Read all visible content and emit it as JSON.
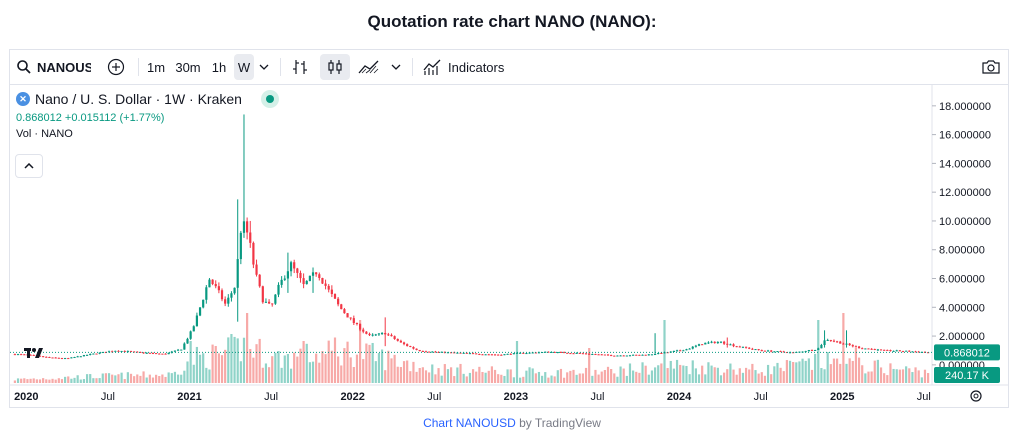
{
  "page_title": "Quotation rate chart NANO (NANO):",
  "toolbar": {
    "symbol": "NANOUSD",
    "intervals": [
      "1m",
      "30m",
      "1h",
      "W"
    ],
    "active_interval": "W",
    "indicators_label": "Indicators"
  },
  "legend": {
    "title": "Nano / U. S. Dollar · 1W · Kraken",
    "price_line": "0.868012 +0.015112 (+1.77%)",
    "volume_label": "Vol · NANO"
  },
  "footer": {
    "link_text": "Chart NANOUSD",
    "by_text": " by TradingView"
  },
  "colors": {
    "up": "#089981",
    "down": "#f23645",
    "vol_up": "#8fd3c8",
    "vol_down": "#f7a9a7",
    "badge": "#089981"
  },
  "chart_data": {
    "type": "candlestick",
    "y_tick_labels": [
      "18.000000",
      "16.000000",
      "14.000000",
      "12.000000",
      "10.000000",
      "8.000000",
      "6.000000",
      "4.000000",
      "2.000000",
      "0.000000"
    ],
    "y_ticks": [
      18,
      16,
      14,
      12,
      10,
      8,
      6,
      4,
      2,
      0
    ],
    "ylim": [
      -1.4,
      19.1
    ],
    "x_tick_labels": [
      "2020",
      "Jul",
      "2021",
      "Jul",
      "2022",
      "Jul",
      "2023",
      "Jul",
      "2024",
      "Jul",
      "2025",
      "Jul"
    ],
    "x_ticks": [
      2020.0,
      2020.5,
      2021.0,
      2021.5,
      2022.0,
      2022.5,
      2023.0,
      2023.5,
      2024.0,
      2024.5,
      2025.0,
      2025.5
    ],
    "xlim": [
      2019.9,
      2025.55
    ],
    "last_price": 0.868012,
    "last_price_label": "0.868012",
    "last_volume_label": "240.17 K",
    "price_keypoints": [
      [
        2019.92,
        0.75
      ],
      [
        2020.0,
        0.7
      ],
      [
        2020.15,
        0.5
      ],
      [
        2020.25,
        0.45
      ],
      [
        2020.4,
        0.75
      ],
      [
        2020.55,
        1.0
      ],
      [
        2020.7,
        0.85
      ],
      [
        2020.85,
        0.75
      ],
      [
        2020.95,
        1.1
      ],
      [
        2021.02,
        2.5
      ],
      [
        2021.08,
        4.5
      ],
      [
        2021.12,
        6.0
      ],
      [
        2021.17,
        5.2
      ],
      [
        2021.22,
        4.2
      ],
      [
        2021.28,
        5.5
      ],
      [
        2021.32,
        10.0
      ],
      [
        2021.36,
        9.0
      ],
      [
        2021.4,
        6.5
      ],
      [
        2021.45,
        4.5
      ],
      [
        2021.5,
        4.0
      ],
      [
        2021.55,
        5.5
      ],
      [
        2021.62,
        7.0
      ],
      [
        2021.7,
        5.5
      ],
      [
        2021.78,
        6.5
      ],
      [
        2021.85,
        5.2
      ],
      [
        2021.92,
        4.0
      ],
      [
        2022.0,
        3.0
      ],
      [
        2022.1,
        2.0
      ],
      [
        2022.2,
        2.2
      ],
      [
        2022.3,
        1.5
      ],
      [
        2022.4,
        1.0
      ],
      [
        2022.5,
        0.9
      ],
      [
        2022.7,
        0.8
      ],
      [
        2022.9,
        0.7
      ],
      [
        2023.0,
        0.8
      ],
      [
        2023.2,
        0.9
      ],
      [
        2023.4,
        0.8
      ],
      [
        2023.6,
        0.65
      ],
      [
        2023.8,
        0.7
      ],
      [
        2023.95,
        0.9
      ],
      [
        2024.05,
        1.1
      ],
      [
        2024.15,
        1.5
      ],
      [
        2024.25,
        1.6
      ],
      [
        2024.35,
        1.3
      ],
      [
        2024.5,
        1.0
      ],
      [
        2024.7,
        0.85
      ],
      [
        2024.85,
        1.1
      ],
      [
        2024.9,
        1.8
      ],
      [
        2025.0,
        1.5
      ],
      [
        2025.1,
        1.2
      ],
      [
        2025.25,
        1.0
      ],
      [
        2025.4,
        0.95
      ],
      [
        2025.53,
        0.868
      ]
    ],
    "price_spikes": [
      [
        2021.3,
        11.5,
        3.0
      ],
      [
        2021.34,
        17.4,
        9.0
      ],
      [
        2021.38,
        10.0,
        8.5
      ],
      [
        2021.6,
        7.8,
        5.0
      ],
      [
        2021.75,
        6.7,
        5.0
      ],
      [
        2022.2,
        3.3,
        1.3
      ],
      [
        2023.85,
        2.2,
        0.9
      ],
      [
        2024.3,
        1.9,
        1.2
      ],
      [
        2024.9,
        2.4,
        1.2
      ],
      [
        2025.02,
        2.4,
        1.2
      ]
    ],
    "volume_keypoints": [
      [
        2019.92,
        0.05
      ],
      [
        2020.5,
        0.1
      ],
      [
        2020.9,
        0.12
      ],
      [
        2021.0,
        0.35
      ],
      [
        2021.2,
        0.4
      ],
      [
        2021.35,
        0.55
      ],
      [
        2021.5,
        0.35
      ],
      [
        2021.8,
        0.4
      ],
      [
        2022.0,
        0.45
      ],
      [
        2022.3,
        0.3
      ],
      [
        2022.5,
        0.2
      ],
      [
        2023.0,
        0.15
      ],
      [
        2023.5,
        0.15
      ],
      [
        2024.0,
        0.25
      ],
      [
        2024.5,
        0.18
      ],
      [
        2024.9,
        0.3
      ],
      [
        2025.53,
        0.15
      ]
    ],
    "volume_spikes": [
      [
        2021.35,
        1.0
      ],
      [
        2021.0,
        0.6
      ],
      [
        2021.9,
        0.65
      ],
      [
        2022.05,
        0.9
      ],
      [
        2023.0,
        0.6
      ],
      [
        2023.45,
        0.5
      ],
      [
        2023.92,
        0.9
      ],
      [
        2024.85,
        0.9
      ],
      [
        2025.0,
        1.0
      ],
      [
        2025.08,
        0.5
      ],
      [
        2021.25,
        0.7
      ],
      [
        2021.7,
        0.6
      ]
    ]
  }
}
